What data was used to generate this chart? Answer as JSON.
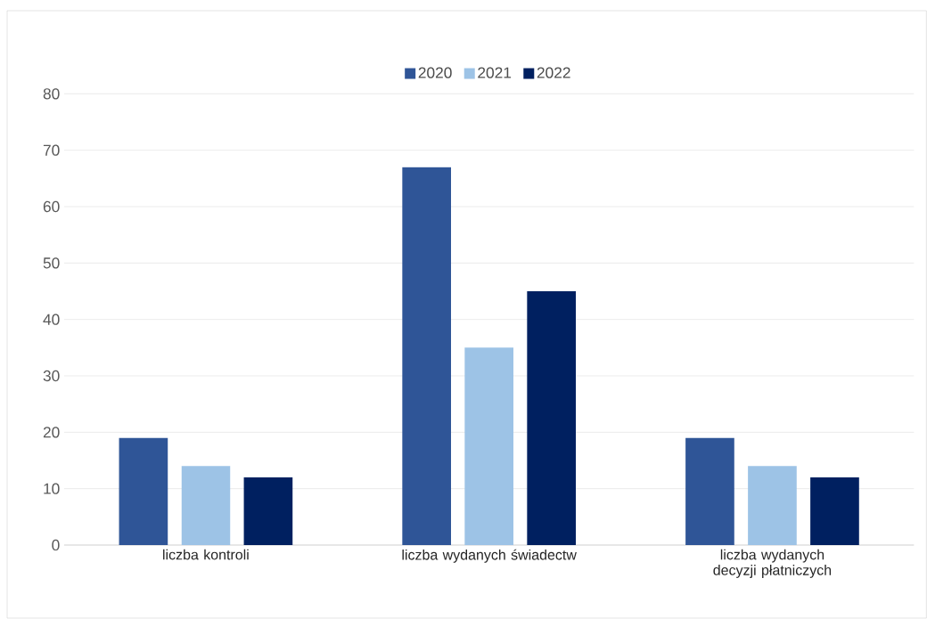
{
  "chart_data": {
    "type": "bar",
    "categories": [
      "liczba kontroli",
      "liczba wydanych świadectw",
      "liczba wydanych decyzji płatniczych"
    ],
    "series": [
      {
        "name": "2020",
        "color": "#2f5597",
        "values": [
          19,
          67,
          19
        ]
      },
      {
        "name": "2021",
        "color": "#9dc3e6",
        "values": [
          14,
          35,
          14
        ]
      },
      {
        "name": "2022",
        "color": "#002060",
        "values": [
          12,
          45,
          12
        ]
      }
    ],
    "ylim": [
      0,
      80
    ],
    "yticks": [
      0,
      10,
      20,
      30,
      40,
      50,
      60,
      70,
      80
    ],
    "grid": "y",
    "legend": "top"
  }
}
